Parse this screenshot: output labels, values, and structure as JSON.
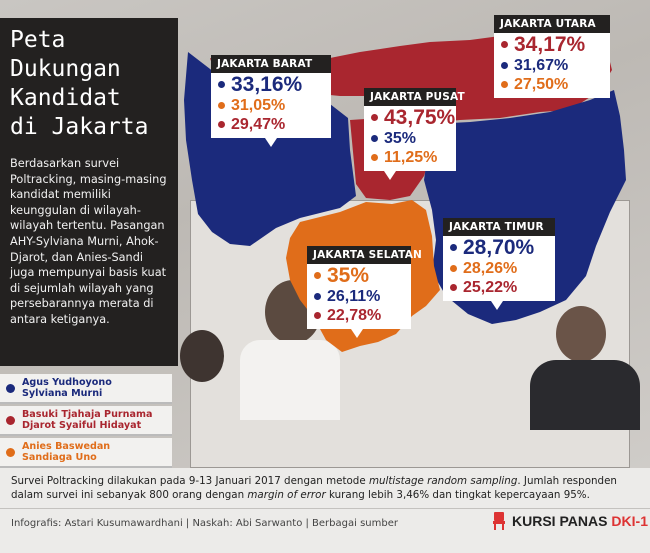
{
  "colors": {
    "ahy": "#1b2a7c",
    "ahok": "#a9262f",
    "anies": "#e06d1a",
    "panel": "#232120"
  },
  "title_panel": {
    "title_lines": [
      "Peta",
      "Dukungan",
      "Kandidat",
      "di Jakarta"
    ],
    "description": "Berdasarkan survei Poltracking, masing-masing kandidat memiliki keunggulan di wilayah-wilayah tertentu. Pasangan AHY-Sylviana Murni, Ahok-Djarot, dan Anies-Sandi juga mempunyai basis kuat di sejumlah wilayah yang persebarannya merata di antara ketiganya."
  },
  "legend": [
    {
      "line1": "Agus Yudhoyono",
      "line2": "Sylviana Murni",
      "color": "#1b2a7c"
    },
    {
      "line1": "Basuki Tjahaja Purnama",
      "line2": "Djarot Syaiful Hidayat",
      "color": "#a9262f"
    },
    {
      "line1": "Anies Baswedan",
      "line2": "Sandiaga Uno",
      "color": "#e06d1a"
    }
  ],
  "regions": {
    "barat": {
      "name": "JAKARTA BARAT",
      "rows": [
        {
          "v": "33,16%",
          "c": "#1b2a7c"
        },
        {
          "v": "31,05%",
          "c": "#e06d1a"
        },
        {
          "v": "29,47%",
          "c": "#a9262f"
        }
      ]
    },
    "pusat": {
      "name": "JAKARTA PUSAT",
      "rows": [
        {
          "v": "43,75%",
          "c": "#a9262f"
        },
        {
          "v": "35%",
          "c": "#1b2a7c"
        },
        {
          "v": "11,25%",
          "c": "#e06d1a"
        }
      ]
    },
    "utara": {
      "name": "JAKARTA UTARA",
      "rows": [
        {
          "v": "34,17%",
          "c": "#a9262f"
        },
        {
          "v": "31,67%",
          "c": "#1b2a7c"
        },
        {
          "v": "27,50%",
          "c": "#e06d1a"
        }
      ]
    },
    "selatan": {
      "name": "JAKARTA SELATAN",
      "rows": [
        {
          "v": "35%",
          "c": "#e06d1a"
        },
        {
          "v": "26,11%",
          "c": "#1b2a7c"
        },
        {
          "v": "22,78%",
          "c": "#a9262f"
        }
      ]
    },
    "timur": {
      "name": "JAKARTA TIMUR",
      "rows": [
        {
          "v": "28,70%",
          "c": "#1b2a7c"
        },
        {
          "v": "28,26%",
          "c": "#e06d1a"
        },
        {
          "v": "25,22%",
          "c": "#a9262f"
        }
      ]
    }
  },
  "footer": {
    "survey_part1": "Survei Poltracking dilakukan pada 9-13 Januari 2017 dengan metode ",
    "survey_italic1": "multistage random sampling",
    "survey_part2": ". Jumlah responden dalam survei ini sebanyak 800 orang dengan ",
    "survey_italic2": "margin of error",
    "survey_part3": " kurang lebih 3,46% dan tingkat kepercayaan 95%.",
    "credits": "Infografis: Astari Kusumawardhani | Naskah: Abi Sarwanto | Berbagai sumber",
    "logo_main": "KURSI PANAS",
    "logo_accent": "DKI-1"
  }
}
